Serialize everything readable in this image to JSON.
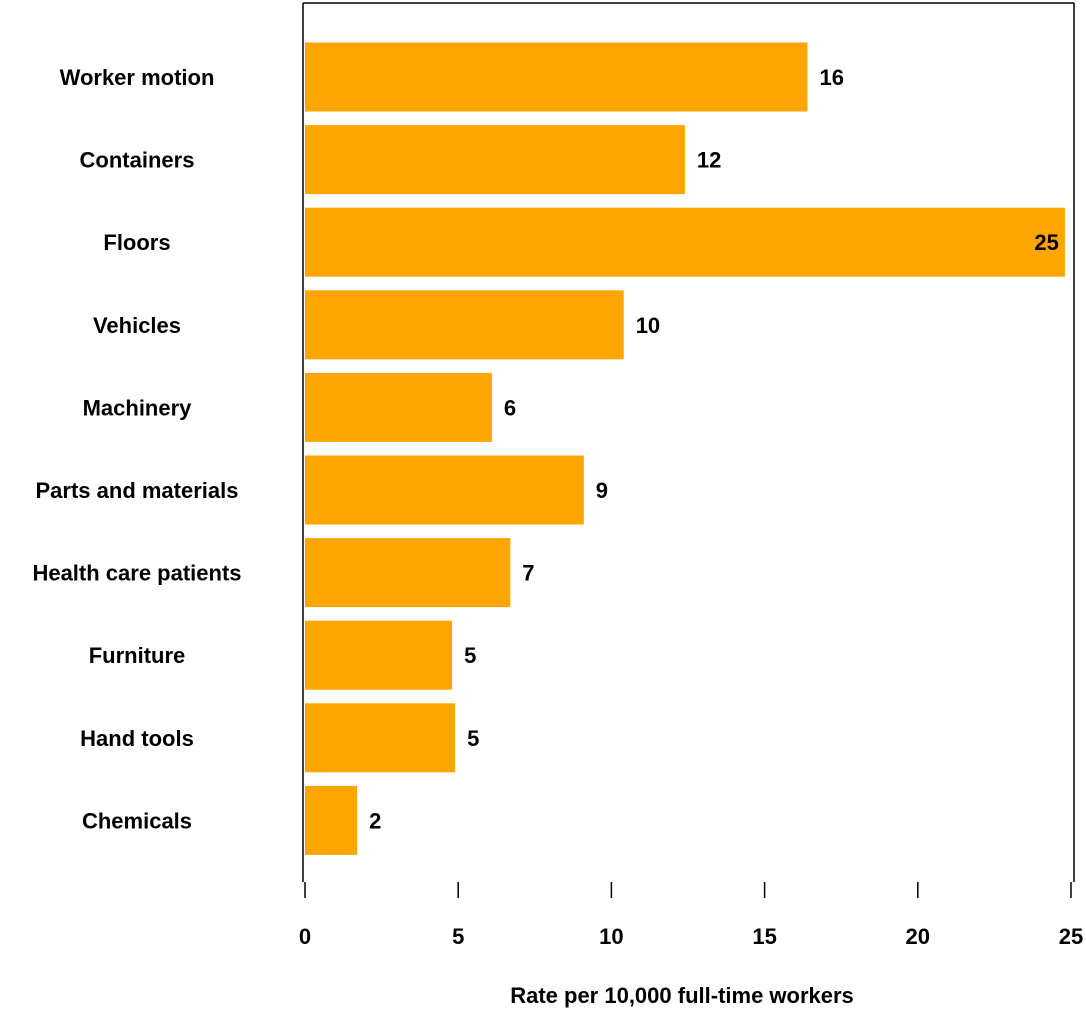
{
  "chart_data": {
    "type": "bar",
    "orientation": "horizontal",
    "title": "",
    "xlabel": "Rate per 10,000 full-time workers",
    "ylabel": "",
    "categories": [
      "Worker motion",
      "Containers",
      "Floors",
      "Vehicles",
      "Machinery",
      "Parts and materials",
      "Health care patients",
      "Furniture",
      "Hand tools",
      "Chemicals"
    ],
    "values": [
      16.4,
      12.4,
      24.8,
      10.4,
      6.1,
      9.1,
      6.7,
      4.8,
      4.9,
      1.7
    ],
    "data_labels": [
      "16",
      "12",
      "25",
      "10",
      "6",
      "9",
      "7",
      "5",
      "5",
      "2"
    ],
    "xlim": [
      0,
      25
    ],
    "xticks": [
      0,
      5,
      10,
      15,
      20,
      25
    ],
    "xtick_labels": [
      "0",
      "5",
      "10",
      "15",
      "20",
      "25"
    ],
    "grid": false,
    "legend": "none",
    "bar_color": "#FFA500"
  }
}
